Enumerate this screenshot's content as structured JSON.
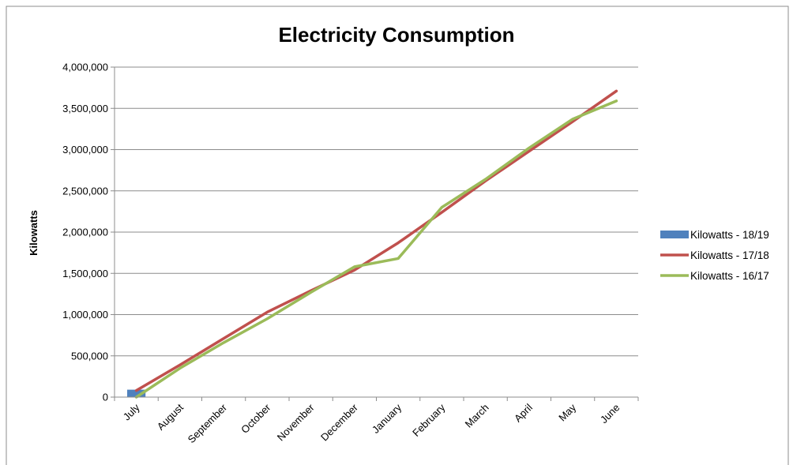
{
  "chart_data": {
    "type": "line",
    "title": "Electricity Consumption",
    "xlabel": "",
    "ylabel": "Kilowatts",
    "categories": [
      "July",
      "August",
      "September",
      "October",
      "November",
      "December",
      "January",
      "February",
      "March",
      "April",
      "May",
      "June"
    ],
    "yticks": [
      "0",
      "500,000",
      "1,000,000",
      "1,500,000",
      "2,000,000",
      "2,500,000",
      "3,000,000",
      "3,500,000",
      "4,000,000"
    ],
    "ylim": [
      0,
      4000000
    ],
    "grid": true,
    "legend_position": "right",
    "series": [
      {
        "name": "Kilowatts - 18/19",
        "kind": "bar",
        "color": "#4F81BD",
        "values": [
          90000,
          null,
          null,
          null,
          null,
          null,
          null,
          null,
          null,
          null,
          null,
          null
        ]
      },
      {
        "name": "Kilowatts - 17/18",
        "kind": "line",
        "color": "#C0504D",
        "values": [
          80000,
          390000,
          710000,
          1030000,
          1290000,
          1540000,
          1870000,
          2240000,
          2620000,
          2980000,
          3340000,
          3710000
        ]
      },
      {
        "name": "Kilowatts - 16/17",
        "kind": "line",
        "color": "#9BBB59",
        "values": [
          0,
          350000,
          660000,
          950000,
          1270000,
          1580000,
          1680000,
          2300000,
          2640000,
          3020000,
          3370000,
          3590000
        ]
      }
    ]
  }
}
